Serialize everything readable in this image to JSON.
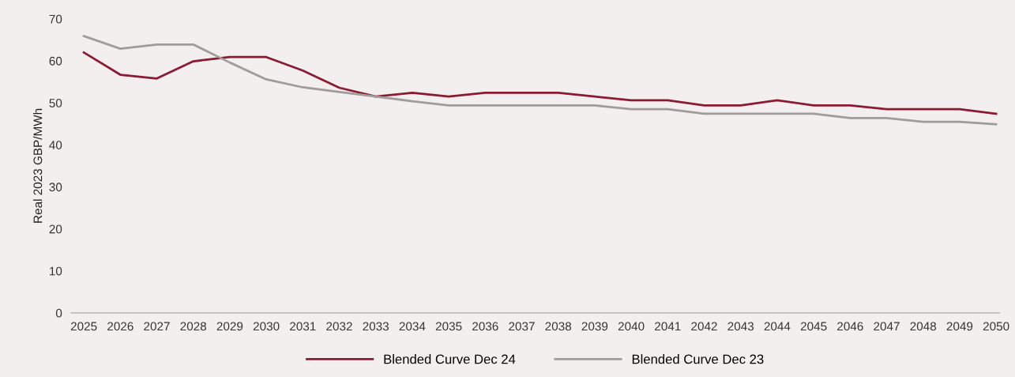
{
  "chart_data": {
    "type": "line",
    "ylabel": "Real 2023 GBP/MWh",
    "categories": [
      "2025",
      "2026",
      "2027",
      "2028",
      "2029",
      "2030",
      "2031",
      "2032",
      "2033",
      "2034",
      "2035",
      "2036",
      "2037",
      "2038",
      "2039",
      "2040",
      "2041",
      "2042",
      "2043",
      "2044",
      "2045",
      "2046",
      "2047",
      "2048",
      "2049",
      "2050"
    ],
    "series": [
      {
        "name": "Blended Curve Dec 24",
        "color": "#8b1a32",
        "values": [
          62.0,
          56.7,
          55.8,
          59.9,
          60.9,
          60.9,
          57.7,
          53.6,
          51.5,
          52.4,
          51.5,
          52.4,
          52.4,
          52.4,
          51.5,
          50.6,
          50.6,
          49.4,
          49.4,
          50.6,
          49.4,
          49.4,
          48.5,
          48.5,
          48.5,
          47.4
        ]
      },
      {
        "name": "Blended Curve Dec 23",
        "color": "#a09c9a",
        "values": [
          65.9,
          62.9,
          63.9,
          63.9,
          59.6,
          55.6,
          53.7,
          52.6,
          51.5,
          50.4,
          49.4,
          49.4,
          49.4,
          49.4,
          49.4,
          48.5,
          48.5,
          47.4,
          47.4,
          47.4,
          47.4,
          46.4,
          46.4,
          45.5,
          45.5,
          44.9
        ]
      }
    ],
    "ylim": [
      0,
      70
    ],
    "yticks": [
      0,
      10,
      20,
      30,
      40,
      50,
      60,
      70
    ],
    "grid": false,
    "legend": "bottom",
    "marker": "none",
    "line_style": "solid"
  }
}
